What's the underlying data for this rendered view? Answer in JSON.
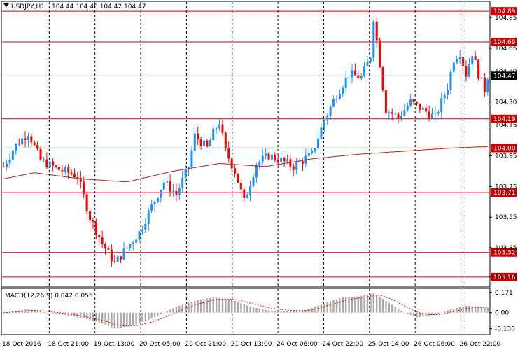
{
  "header": {
    "symbol_text": "USDJPY,H1",
    "ohlc_text": "104.44 104.48 104.42 104.47"
  },
  "macd": {
    "label": "MACD(12,26,9) 0.042 0.055",
    "axis_labels": [
      "0.171",
      "0.00",
      "-0.136"
    ]
  },
  "colors": {
    "bull": "#1e90ff",
    "bear": "#ff0000",
    "level_line": "#cc0000",
    "ma_line": "#b22222",
    "macd_hist": "#a9a9a9",
    "signal": "#ff0000"
  },
  "chart_data": {
    "type": "candlestick",
    "price_axis_labels": [
      "104.85",
      "104.65",
      "104.50",
      "104.30",
      "104.15",
      "103.95",
      "103.75",
      "103.55",
      "103.35",
      "103.16"
    ],
    "levels": [
      {
        "price": 104.89,
        "label": "104.89",
        "style": "red"
      },
      {
        "price": 104.69,
        "label": "104.69",
        "style": "red"
      },
      {
        "price": 104.47,
        "label": "104.47",
        "style": "current"
      },
      {
        "price": 104.19,
        "label": "104.19",
        "style": "red"
      },
      {
        "price": 104.0,
        "label": "104.00",
        "style": "red"
      },
      {
        "price": 103.71,
        "label": "103.71",
        "style": "red"
      },
      {
        "price": 103.32,
        "label": "103.32",
        "style": "red"
      },
      {
        "price": 103.16,
        "label": "103.16",
        "style": "red"
      }
    ],
    "time_labels": [
      "18 Oct 2016",
      "18 Oct 21:00",
      "19 Oct 13:00",
      "20 Oct 05:00",
      "20 Oct 21:00",
      "21 Oct 13:00",
      "24 Oct 06:00",
      "24 Oct 22:00",
      "25 Oct 14:00",
      "26 Oct 06:00",
      "26 Oct 22:00"
    ],
    "ylim": [
      103.1,
      104.95
    ],
    "keypoints": [
      [
        0,
        103.88
      ],
      [
        4,
        104.02
      ],
      [
        8,
        104.1
      ],
      [
        12,
        103.92
      ],
      [
        18,
        103.86
      ],
      [
        24,
        103.82
      ],
      [
        28,
        103.55
      ],
      [
        32,
        103.38
      ],
      [
        36,
        103.25
      ],
      [
        40,
        103.35
      ],
      [
        44,
        103.45
      ],
      [
        48,
        103.62
      ],
      [
        52,
        103.78
      ],
      [
        56,
        103.7
      ],
      [
        60,
        103.88
      ],
      [
        62,
        104.08
      ],
      [
        66,
        104.0
      ],
      [
        68,
        104.1
      ],
      [
        70,
        104.17
      ],
      [
        72,
        103.98
      ],
      [
        75,
        103.85
      ],
      [
        78,
        103.65
      ],
      [
        82,
        103.9
      ],
      [
        86,
        103.95
      ],
      [
        90,
        103.92
      ],
      [
        94,
        103.88
      ],
      [
        100,
        103.96
      ],
      [
        104,
        104.18
      ],
      [
        108,
        104.35
      ],
      [
        112,
        104.48
      ],
      [
        116,
        104.46
      ],
      [
        119,
        104.6
      ],
      [
        120,
        104.85
      ],
      [
        122,
        104.55
      ],
      [
        124,
        104.25
      ],
      [
        128,
        104.2
      ],
      [
        132,
        104.3
      ],
      [
        136,
        104.25
      ],
      [
        140,
        104.2
      ],
      [
        144,
        104.4
      ],
      [
        146,
        104.58
      ],
      [
        148,
        104.62
      ],
      [
        150,
        104.48
      ],
      [
        152,
        104.62
      ],
      [
        154,
        104.48
      ],
      [
        156,
        104.38
      ],
      [
        157,
        104.47
      ]
    ],
    "ma_keypoints": [
      [
        0,
        103.8
      ],
      [
        10,
        103.84
      ],
      [
        25,
        103.8
      ],
      [
        40,
        103.78
      ],
      [
        55,
        103.85
      ],
      [
        70,
        103.9
      ],
      [
        85,
        103.88
      ],
      [
        100,
        103.93
      ],
      [
        115,
        103.96
      ],
      [
        130,
        103.98
      ],
      [
        145,
        104.0
      ],
      [
        157,
        104.01
      ]
    ],
    "macd_keypoints": [
      [
        0,
        0.0
      ],
      [
        8,
        0.03
      ],
      [
        14,
        0.0
      ],
      [
        20,
        -0.02
      ],
      [
        26,
        -0.05
      ],
      [
        32,
        -0.09
      ],
      [
        36,
        -0.135
      ],
      [
        42,
        -0.11
      ],
      [
        48,
        -0.05
      ],
      [
        56,
        0.05
      ],
      [
        62,
        0.1
      ],
      [
        68,
        0.13
      ],
      [
        74,
        0.11
      ],
      [
        80,
        0.05
      ],
      [
        86,
        0.02
      ],
      [
        92,
        0.01
      ],
      [
        98,
        0.02
      ],
      [
        104,
        0.08
      ],
      [
        110,
        0.13
      ],
      [
        116,
        0.14
      ],
      [
        120,
        0.17
      ],
      [
        124,
        0.1
      ],
      [
        130,
        0.0
      ],
      [
        134,
        -0.04
      ],
      [
        140,
        -0.02
      ],
      [
        144,
        0.02
      ],
      [
        150,
        0.06
      ],
      [
        154,
        0.05
      ],
      [
        157,
        0.042
      ]
    ],
    "macd_ylim": [
      -0.18,
      0.2
    ],
    "n_bars": 158
  }
}
